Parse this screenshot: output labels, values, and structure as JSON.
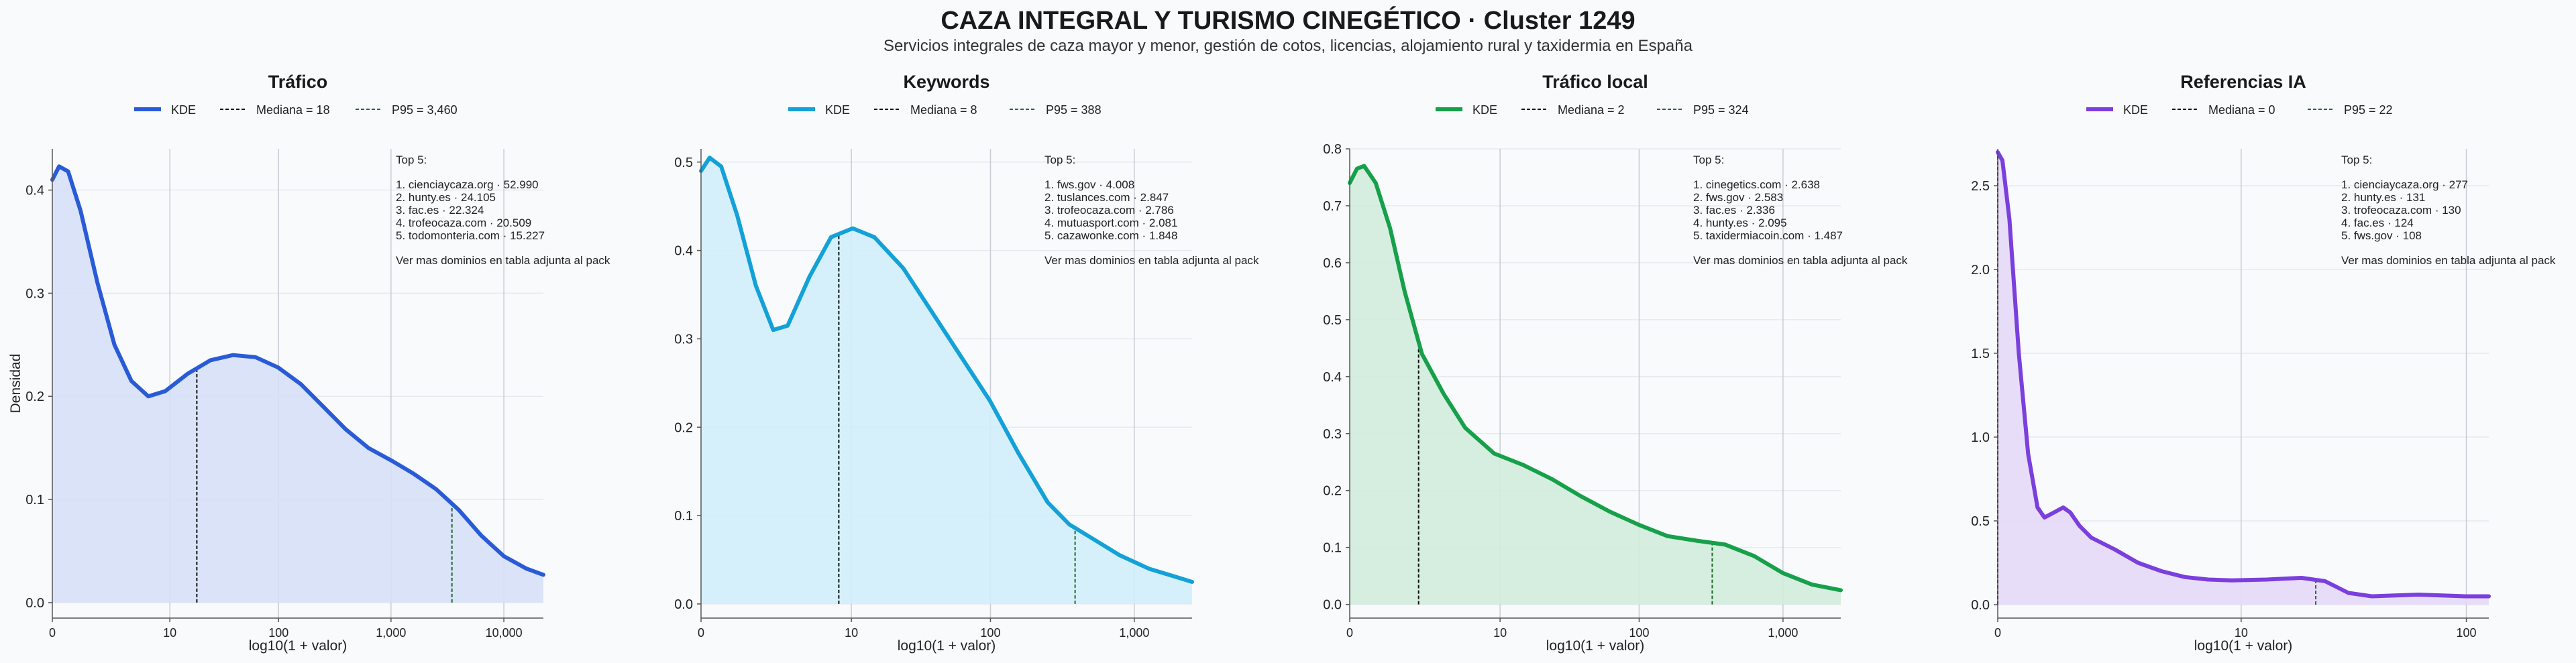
{
  "figure": {
    "title": "CAZA INTEGRAL Y TURISMO CINEGÉTICO · Cluster 1249",
    "subtitle": "Servicios integrales de caza mayor y menor, gestión de cotos, licencias, alojamiento rural y taxidermia en España",
    "ylabel": "Densidad",
    "xlabel": "log10(1 + valor)",
    "legend_kde": "KDE",
    "more_note": "Ver mas dominios en tabla adjunta al pack",
    "top_title": "Top 5:"
  },
  "chart_data": [
    {
      "type": "area",
      "title": "Tráfico",
      "color": "#2a5bd7",
      "fill": "#d6e0f7",
      "xlabel": "log10(1 + valor)",
      "ylabel": "Densidad",
      "xlim": [
        0,
        4.35
      ],
      "ylim": [
        -0.015,
        0.44
      ],
      "xticks": [
        {
          "v": 0,
          "label": "0"
        },
        {
          "v": 1.041,
          "label": "10"
        },
        {
          "v": 2.004,
          "label": "100"
        },
        {
          "v": 3.0,
          "label": "1,000"
        },
        {
          "v": 4.0,
          "label": "10,000"
        }
      ],
      "yticks": [
        {
          "v": 0,
          "label": "0.0"
        },
        {
          "v": 0.1,
          "label": "0.1"
        },
        {
          "v": 0.2,
          "label": "0.2"
        },
        {
          "v": 0.3,
          "label": "0.3"
        },
        {
          "v": 0.4,
          "label": "0.4"
        }
      ],
      "median": {
        "x": 1.28,
        "label": "Mediana = 18"
      },
      "p95": {
        "x": 3.54,
        "label": "P95 = 3,460"
      },
      "kde": [
        [
          0,
          0.41
        ],
        [
          0.06,
          0.423
        ],
        [
          0.14,
          0.418
        ],
        [
          0.25,
          0.38
        ],
        [
          0.4,
          0.31
        ],
        [
          0.55,
          0.25
        ],
        [
          0.7,
          0.215
        ],
        [
          0.85,
          0.2
        ],
        [
          1.0,
          0.205
        ],
        [
          1.2,
          0.222
        ],
        [
          1.4,
          0.235
        ],
        [
          1.6,
          0.24
        ],
        [
          1.8,
          0.238
        ],
        [
          2.0,
          0.228
        ],
        [
          2.2,
          0.212
        ],
        [
          2.4,
          0.19
        ],
        [
          2.6,
          0.168
        ],
        [
          2.8,
          0.15
        ],
        [
          3.0,
          0.138
        ],
        [
          3.2,
          0.125
        ],
        [
          3.4,
          0.11
        ],
        [
          3.6,
          0.09
        ],
        [
          3.8,
          0.065
        ],
        [
          4.0,
          0.045
        ],
        [
          4.2,
          0.033
        ],
        [
          4.35,
          0.027
        ]
      ],
      "top5": [
        "1. cienciaycaza.org · 52.990",
        "2. hunty.es · 24.105",
        "3. fac.es · 22.324",
        "4. trofeocaza.com · 20.509",
        "5. todomonteria.com · 15.227"
      ]
    },
    {
      "type": "area",
      "title": "Keywords",
      "color": "#13a1d8",
      "fill": "#d0eefa",
      "xlabel": "log10(1 + valor)",
      "ylabel": "",
      "xlim": [
        0,
        3.4
      ],
      "ylim": [
        -0.016,
        0.515
      ],
      "xticks": [
        {
          "v": 0,
          "label": "0"
        },
        {
          "v": 1.041,
          "label": "10"
        },
        {
          "v": 2.004,
          "label": "100"
        },
        {
          "v": 3.0,
          "label": "1,000"
        }
      ],
      "yticks": [
        {
          "v": 0,
          "label": "0.0"
        },
        {
          "v": 0.1,
          "label": "0.1"
        },
        {
          "v": 0.2,
          "label": "0.2"
        },
        {
          "v": 0.3,
          "label": "0.3"
        },
        {
          "v": 0.4,
          "label": "0.4"
        },
        {
          "v": 0.5,
          "label": "0.5"
        }
      ],
      "median": {
        "x": 0.954,
        "label": "Mediana = 8"
      },
      "p95": {
        "x": 2.59,
        "label": "P95 = 388"
      },
      "kde": [
        [
          0,
          0.49
        ],
        [
          0.06,
          0.505
        ],
        [
          0.14,
          0.495
        ],
        [
          0.25,
          0.44
        ],
        [
          0.38,
          0.36
        ],
        [
          0.5,
          0.31
        ],
        [
          0.6,
          0.315
        ],
        [
          0.75,
          0.37
        ],
        [
          0.9,
          0.415
        ],
        [
          1.05,
          0.425
        ],
        [
          1.2,
          0.415
        ],
        [
          1.4,
          0.38
        ],
        [
          1.6,
          0.33
        ],
        [
          1.8,
          0.28
        ],
        [
          2.0,
          0.23
        ],
        [
          2.2,
          0.17
        ],
        [
          2.4,
          0.115
        ],
        [
          2.55,
          0.09
        ],
        [
          2.7,
          0.075
        ],
        [
          2.9,
          0.055
        ],
        [
          3.1,
          0.04
        ],
        [
          3.3,
          0.03
        ],
        [
          3.4,
          0.025
        ]
      ],
      "top5": [
        "1. fws.gov · 4.008",
        "2. tuslances.com · 2.847",
        "3. trofeocaza.com · 2.786",
        "4. mutuasport.com · 2.081",
        "5. cazawonke.com · 1.848"
      ]
    },
    {
      "type": "area",
      "title": "Tráfico local",
      "color": "#16a04a",
      "fill": "#d2ecdb",
      "xlabel": "log10(1 + valor)",
      "ylabel": "",
      "xlim": [
        0,
        3.4
      ],
      "ylim": [
        -0.024,
        0.8
      ],
      "xticks": [
        {
          "v": 0,
          "label": "0"
        },
        {
          "v": 1.041,
          "label": "10"
        },
        {
          "v": 2.004,
          "label": "100"
        },
        {
          "v": 3.0,
          "label": "1,000"
        }
      ],
      "yticks": [
        {
          "v": 0,
          "label": "0.0"
        },
        {
          "v": 0.1,
          "label": "0.1"
        },
        {
          "v": 0.2,
          "label": "0.2"
        },
        {
          "v": 0.3,
          "label": "0.3"
        },
        {
          "v": 0.4,
          "label": "0.4"
        },
        {
          "v": 0.5,
          "label": "0.5"
        },
        {
          "v": 0.6,
          "label": "0.6"
        },
        {
          "v": 0.7,
          "label": "0.7"
        },
        {
          "v": 0.8,
          "label": "0.8"
        }
      ],
      "median": {
        "x": 0.477,
        "label": "Mediana = 2"
      },
      "p95": {
        "x": 2.51,
        "label": "P95 = 324"
      },
      "kde": [
        [
          0,
          0.74
        ],
        [
          0.05,
          0.765
        ],
        [
          0.1,
          0.77
        ],
        [
          0.18,
          0.74
        ],
        [
          0.28,
          0.66
        ],
        [
          0.38,
          0.55
        ],
        [
          0.5,
          0.44
        ],
        [
          0.65,
          0.37
        ],
        [
          0.8,
          0.31
        ],
        [
          1.0,
          0.265
        ],
        [
          1.2,
          0.245
        ],
        [
          1.4,
          0.22
        ],
        [
          1.6,
          0.19
        ],
        [
          1.8,
          0.163
        ],
        [
          2.0,
          0.14
        ],
        [
          2.2,
          0.12
        ],
        [
          2.4,
          0.112
        ],
        [
          2.6,
          0.105
        ],
        [
          2.8,
          0.085
        ],
        [
          3.0,
          0.055
        ],
        [
          3.2,
          0.035
        ],
        [
          3.4,
          0.025
        ]
      ],
      "top5": [
        "1. cinegetics.com · 2.638",
        "2. fws.gov · 2.583",
        "3. fac.es · 2.336",
        "4. hunty.es · 2.095",
        "5. taxidermiacoin.com · 1.487"
      ]
    },
    {
      "type": "area",
      "title": "Referencias IA",
      "color": "#7a3fdc",
      "fill": "#e6d9f7",
      "xlabel": "log10(1 + valor)",
      "ylabel": "",
      "xlim": [
        0,
        2.1
      ],
      "ylim": [
        -0.08,
        2.72
      ],
      "xticks": [
        {
          "v": 0,
          "label": "0"
        },
        {
          "v": 1.041,
          "label": "10"
        },
        {
          "v": 2.004,
          "label": "100"
        }
      ],
      "yticks": [
        {
          "v": 0,
          "label": "0.0"
        },
        {
          "v": 0.5,
          "label": "0.5"
        },
        {
          "v": 1.0,
          "label": "1.0"
        },
        {
          "v": 1.5,
          "label": "1.5"
        },
        {
          "v": 2.0,
          "label": "2.0"
        },
        {
          "v": 2.5,
          "label": "2.5"
        }
      ],
      "median": {
        "x": 0,
        "label": "Mediana = 0"
      },
      "p95": {
        "x": 1.36,
        "label": "P95 = 22"
      },
      "kde": [
        [
          0,
          2.7
        ],
        [
          0.02,
          2.65
        ],
        [
          0.05,
          2.3
        ],
        [
          0.09,
          1.5
        ],
        [
          0.13,
          0.9
        ],
        [
          0.17,
          0.58
        ],
        [
          0.2,
          0.52
        ],
        [
          0.24,
          0.55
        ],
        [
          0.28,
          0.58
        ],
        [
          0.31,
          0.55
        ],
        [
          0.35,
          0.47
        ],
        [
          0.4,
          0.4
        ],
        [
          0.5,
          0.33
        ],
        [
          0.6,
          0.25
        ],
        [
          0.7,
          0.2
        ],
        [
          0.8,
          0.165
        ],
        [
          0.9,
          0.15
        ],
        [
          1.0,
          0.145
        ],
        [
          1.15,
          0.15
        ],
        [
          1.3,
          0.16
        ],
        [
          1.4,
          0.14
        ],
        [
          1.5,
          0.07
        ],
        [
          1.6,
          0.05
        ],
        [
          1.7,
          0.055
        ],
        [
          1.8,
          0.06
        ],
        [
          1.9,
          0.055
        ],
        [
          2.0,
          0.05
        ],
        [
          2.1,
          0.05
        ]
      ],
      "top5": [
        "1. cienciaycaza.org · 277",
        "2. hunty.es · 131",
        "3. trofeocaza.com · 130",
        "4. fac.es · 124",
        "5. fws.gov · 108"
      ]
    }
  ]
}
